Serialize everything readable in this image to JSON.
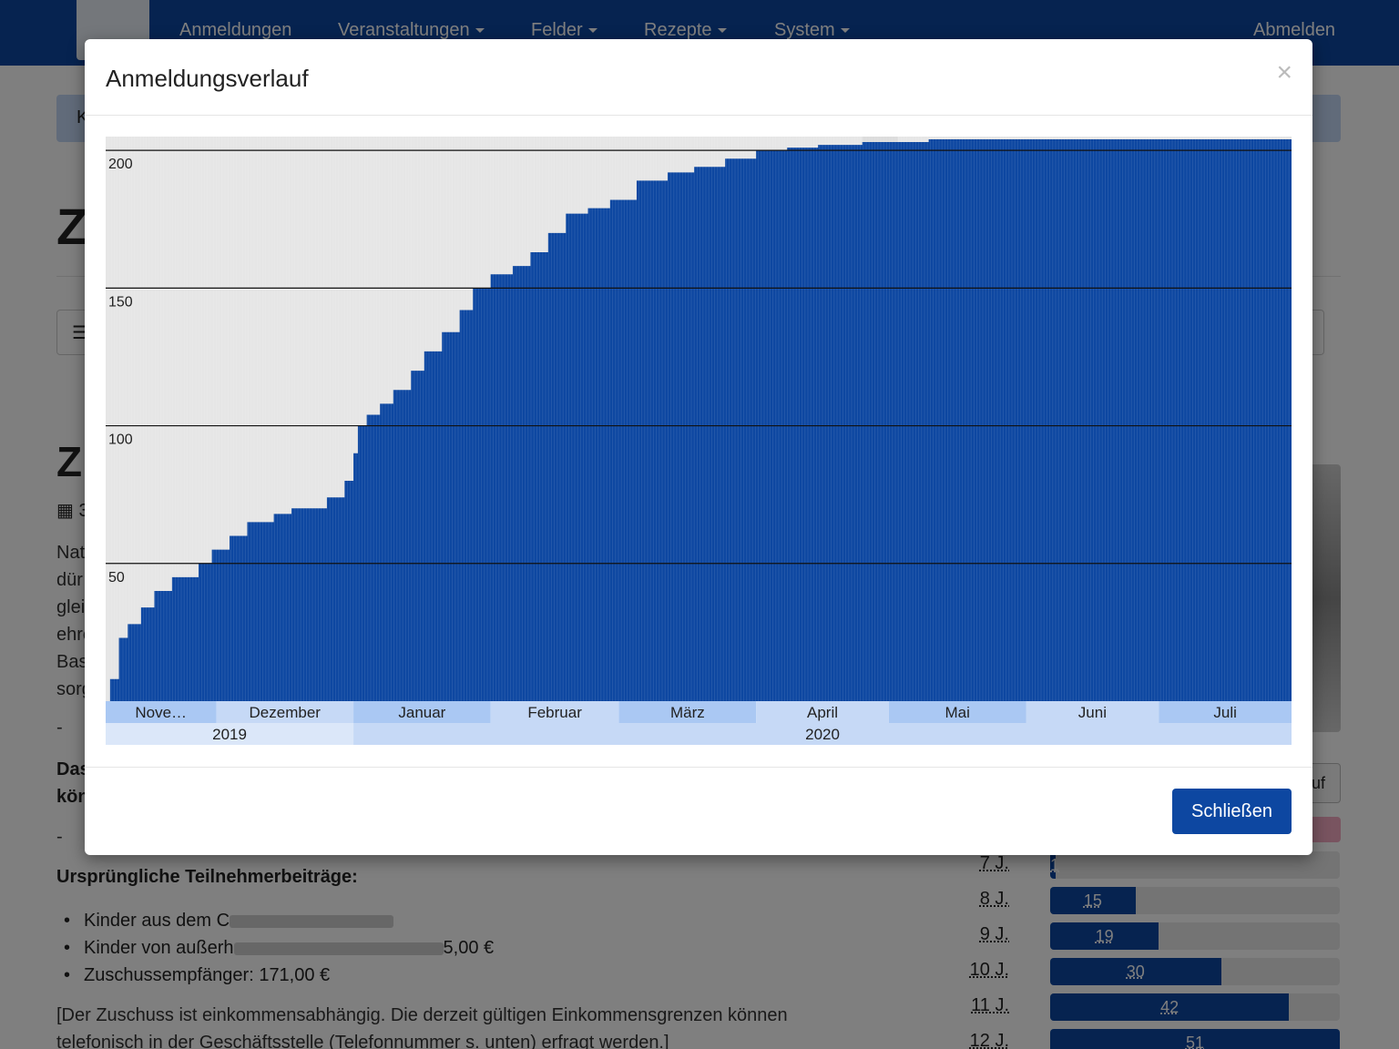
{
  "navbar": {
    "items": [
      "Anmeldungen",
      "Veranstaltungen",
      "Felder",
      "Rezepte",
      "System"
    ],
    "logout": "Abmelden"
  },
  "background": {
    "alert_text": "K",
    "page_title": "Z",
    "toolbar_icon": "list-icon",
    "event_title": "Z",
    "date_text": "3",
    "description_lines": [
      "Nat",
      "dür",
      "glei",
      "ehre",
      "Bas",
      "sorg"
    ],
    "dash": "-",
    "bold_lines": [
      "Das",
      "kön"
    ],
    "fees_heading": "Ursprüngliche Teilnehmerbeiträge:",
    "fees": [
      {
        "prefix": "Kinder aus dem C",
        "suffix": ""
      },
      {
        "prefix": "Kinder von außerh",
        "suffix": "5,00 €"
      },
      {
        "prefix": "Zuschussempfänger: 171,00 €",
        "suffix": ""
      }
    ],
    "note_lines": [
      "[Der Zuschuss ist einkommensabhängig. Die derzeit gültigen Einkommensgrenzen können",
      "telefonisch in der Geschäftsstelle (Telefonnummer s. unten) erfragt werden.]"
    ],
    "side_button_label": "uf",
    "age_stats": [
      {
        "label": "7 J.",
        "value": "1",
        "fraction": 0.02
      },
      {
        "label": "8 J.",
        "value": "15",
        "fraction": 0.295
      },
      {
        "label": "9 J.",
        "value": "19",
        "fraction": 0.375
      },
      {
        "label": "10 J.",
        "value": "30",
        "fraction": 0.59
      },
      {
        "label": "11 J.",
        "value": "42",
        "fraction": 0.825
      },
      {
        "label": "12 J.",
        "value": "51",
        "fraction": 1.0
      }
    ]
  },
  "modal": {
    "title": "Anmeldungsverlauf",
    "close_symbol": "×",
    "close_button": "Schließen"
  },
  "chart_data": {
    "type": "area",
    "title": "",
    "xlabel": "",
    "ylabel": "",
    "ylim": [
      0,
      205
    ],
    "yticks": [
      50,
      100,
      150,
      200
    ],
    "grid": true,
    "series": [
      {
        "name": "",
        "color": "#0d47a1",
        "points": [
          [
            "2019-11-07",
            8
          ],
          [
            "2019-11-09",
            23
          ],
          [
            "2019-11-11",
            28
          ],
          [
            "2019-11-14",
            34
          ],
          [
            "2019-11-17",
            40
          ],
          [
            "2019-11-21",
            45
          ],
          [
            "2019-11-27",
            50
          ],
          [
            "2019-11-30",
            55
          ],
          [
            "2019-12-04",
            60
          ],
          [
            "2019-12-08",
            65
          ],
          [
            "2019-12-14",
            68
          ],
          [
            "2019-12-18",
            70
          ],
          [
            "2019-12-26",
            74
          ],
          [
            "2019-12-30",
            80
          ],
          [
            "2020-01-01",
            90
          ],
          [
            "2020-01-02",
            100
          ],
          [
            "2020-01-04",
            104
          ],
          [
            "2020-01-07",
            108
          ],
          [
            "2020-01-10",
            113
          ],
          [
            "2020-01-14",
            120
          ],
          [
            "2020-01-17",
            127
          ],
          [
            "2020-01-21",
            134
          ],
          [
            "2020-01-25",
            142
          ],
          [
            "2020-01-28",
            150
          ],
          [
            "2020-02-01",
            155
          ],
          [
            "2020-02-06",
            158
          ],
          [
            "2020-02-10",
            163
          ],
          [
            "2020-02-14",
            170
          ],
          [
            "2020-02-18",
            177
          ],
          [
            "2020-02-23",
            179
          ],
          [
            "2020-02-28",
            182
          ],
          [
            "2020-03-05",
            189
          ],
          [
            "2020-03-12",
            192
          ],
          [
            "2020-03-18",
            194
          ],
          [
            "2020-03-25",
            197
          ],
          [
            "2020-04-01",
            200
          ],
          [
            "2020-04-08",
            201
          ],
          [
            "2020-04-15",
            202
          ],
          [
            "2020-04-25",
            203
          ],
          [
            "2020-05-10",
            204
          ],
          [
            "2020-07-31",
            204
          ]
        ]
      }
    ],
    "shading": {
      "recorded_until": "2020-04-25",
      "unrecorded_until": "2020-05-03"
    },
    "x_axis": {
      "start": "2019-11-06",
      "end": "2020-07-31",
      "months": [
        {
          "label": "Nove…",
          "start": "2019-11-06",
          "end": "2019-12-01"
        },
        {
          "label": "Dezember",
          "start": "2019-12-01",
          "end": "2020-01-01"
        },
        {
          "label": "Januar",
          "start": "2020-01-01",
          "end": "2020-02-01"
        },
        {
          "label": "Februar",
          "start": "2020-02-01",
          "end": "2020-03-01"
        },
        {
          "label": "März",
          "start": "2020-03-01",
          "end": "2020-04-01"
        },
        {
          "label": "April",
          "start": "2020-04-01",
          "end": "2020-05-01"
        },
        {
          "label": "Mai",
          "start": "2020-05-01",
          "end": "2020-06-01"
        },
        {
          "label": "Juni",
          "start": "2020-06-01",
          "end": "2020-07-01"
        },
        {
          "label": "Juli",
          "start": "2020-07-01",
          "end": "2020-07-31"
        }
      ],
      "years": [
        {
          "label": "2019",
          "start": "2019-11-06",
          "end": "2020-01-01"
        },
        {
          "label": "2020",
          "start": "2020-01-01",
          "end": "2020-07-31"
        }
      ]
    }
  }
}
